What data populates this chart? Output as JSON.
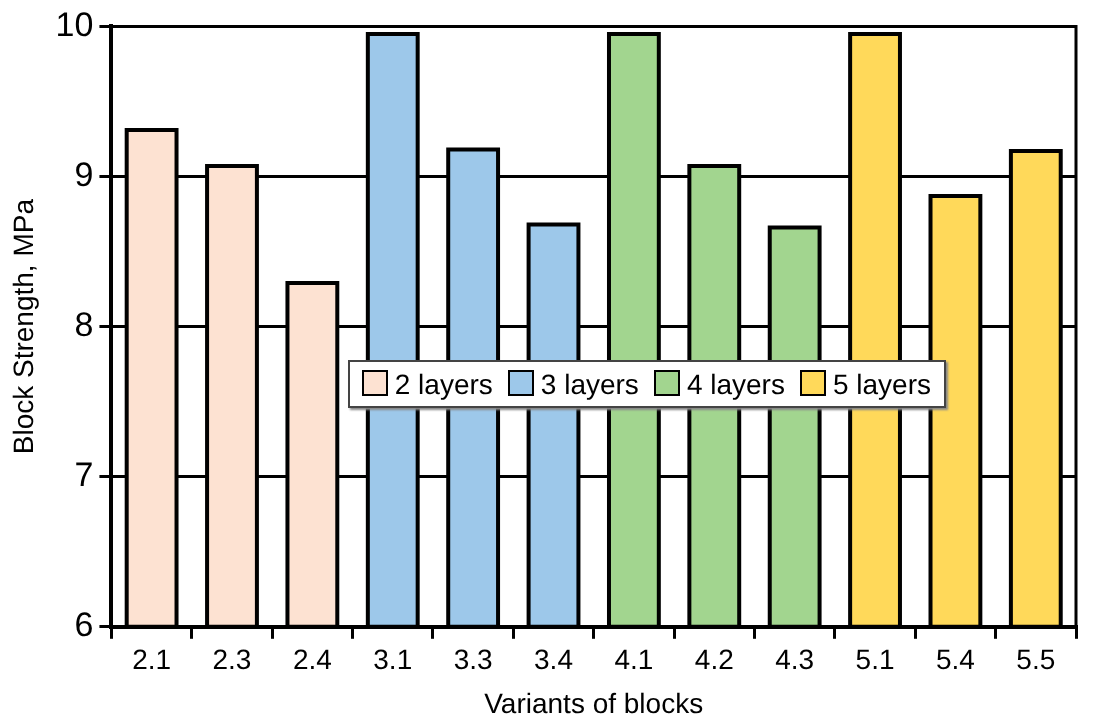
{
  "chart_data": {
    "type": "bar",
    "xlabel": "Variants of blocks",
    "ylabel": "Block Strength, MPa",
    "categories": [
      "2.1",
      "2.3",
      "2.4",
      "3.1",
      "3.3",
      "3.4",
      "4.1",
      "4.2",
      "4.3",
      "5.1",
      "5.4",
      "5.5"
    ],
    "series": [
      {
        "name": "2 layers",
        "color": "#fde2d2",
        "values": [
          9.31,
          9.07,
          8.29,
          null,
          null,
          null,
          null,
          null,
          null,
          null,
          null,
          null
        ]
      },
      {
        "name": "3 layers",
        "color": "#9dc8ea",
        "values": [
          null,
          null,
          null,
          9.95,
          9.18,
          8.68,
          null,
          null,
          null,
          null,
          null,
          null
        ]
      },
      {
        "name": "4 layers",
        "color": "#a2d58f",
        "values": [
          null,
          null,
          null,
          null,
          null,
          null,
          9.95,
          9.07,
          8.66,
          null,
          null,
          null
        ]
      },
      {
        "name": "5 layers",
        "color": "#ffd95a",
        "values": [
          null,
          null,
          null,
          null,
          null,
          null,
          null,
          null,
          null,
          9.95,
          8.87,
          9.17
        ]
      }
    ],
    "ylim": [
      6,
      10
    ],
    "yticks": [
      6,
      7,
      8,
      9,
      10
    ],
    "grid": "y",
    "legend": "center"
  }
}
